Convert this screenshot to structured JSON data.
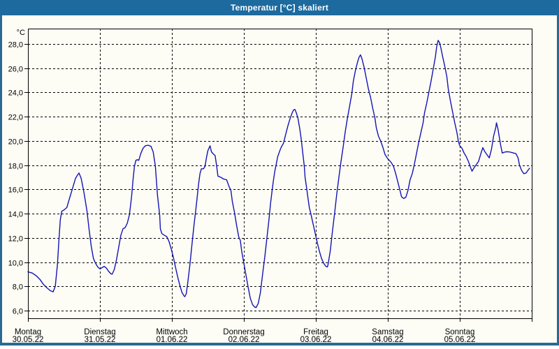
{
  "window": {
    "title": "Temperatur [°C] skaliert"
  },
  "colors": {
    "chrome_blue": "#1d6a9e",
    "border_blue": "#2a6a92",
    "content_bg": "#fdfdf6",
    "plot_border": "#000000",
    "gridline": "#000000",
    "label_color": "#000000",
    "line_color": "#1414b4"
  },
  "chart_data": {
    "type": "line",
    "title": "Temperatur [°C] skaliert",
    "legend": "none",
    "grid": "dashed",
    "y_axis": {
      "unit_label": "°C",
      "tick_values": [
        28,
        26,
        24,
        22,
        20,
        18,
        16,
        14,
        12,
        10,
        8,
        6
      ],
      "tick_labels": [
        "28,0",
        "26,0",
        "24,0",
        "22,0",
        "20,0",
        "18,0",
        "16,0",
        "14,0",
        "12,0",
        "10,0",
        "8,0",
        "6,0"
      ]
    },
    "x_axis": {
      "days": [
        {
          "name": "Montag",
          "date": "30.05.22"
        },
        {
          "name": "Dienstag",
          "date": "31.05.22"
        },
        {
          "name": "Mittwoch",
          "date": "01.06.22"
        },
        {
          "name": "Donnerstag",
          "date": "02.06.22"
        },
        {
          "name": "Freitag",
          "date": "03.06.22"
        },
        {
          "name": "Samstag",
          "date": "04.06.22"
        },
        {
          "name": "Sonntag",
          "date": "05.06.22"
        }
      ],
      "xlim_days": [
        0,
        7
      ]
    },
    "ylim": [
      5.4,
      29.3
    ],
    "series": [
      {
        "name": "Temperatur",
        "points": [
          [
            0.0,
            9.2
          ],
          [
            0.06,
            9.1
          ],
          [
            0.12,
            8.85
          ],
          [
            0.17,
            8.55
          ],
          [
            0.21,
            8.2
          ],
          [
            0.26,
            7.9
          ],
          [
            0.31,
            7.65
          ],
          [
            0.35,
            7.55
          ],
          [
            0.38,
            8.0
          ],
          [
            0.41,
            9.8
          ],
          [
            0.43,
            11.8
          ],
          [
            0.45,
            13.5
          ],
          [
            0.47,
            14.2
          ],
          [
            0.5,
            14.3
          ],
          [
            0.54,
            14.5
          ],
          [
            0.58,
            15.3
          ],
          [
            0.62,
            16.1
          ],
          [
            0.66,
            16.9
          ],
          [
            0.69,
            17.2
          ],
          [
            0.71,
            17.35
          ],
          [
            0.74,
            16.9
          ],
          [
            0.78,
            15.7
          ],
          [
            0.82,
            14.2
          ],
          [
            0.85,
            12.7
          ],
          [
            0.88,
            11.3
          ],
          [
            0.91,
            10.3
          ],
          [
            0.94,
            9.9
          ],
          [
            0.97,
            9.6
          ],
          [
            1.0,
            9.45
          ],
          [
            1.03,
            9.55
          ],
          [
            1.06,
            9.65
          ],
          [
            1.09,
            9.5
          ],
          [
            1.12,
            9.25
          ],
          [
            1.15,
            9.05
          ],
          [
            1.17,
            9.0
          ],
          [
            1.2,
            9.4
          ],
          [
            1.23,
            10.2
          ],
          [
            1.26,
            11.2
          ],
          [
            1.29,
            12.2
          ],
          [
            1.32,
            12.75
          ],
          [
            1.35,
            12.85
          ],
          [
            1.38,
            13.2
          ],
          [
            1.41,
            13.9
          ],
          [
            1.44,
            15.4
          ],
          [
            1.46,
            16.8
          ],
          [
            1.48,
            17.9
          ],
          [
            1.5,
            18.4
          ],
          [
            1.52,
            18.45
          ],
          [
            1.54,
            18.4
          ],
          [
            1.57,
            19.0
          ],
          [
            1.6,
            19.4
          ],
          [
            1.63,
            19.6
          ],
          [
            1.67,
            19.65
          ],
          [
            1.71,
            19.55
          ],
          [
            1.74,
            19.1
          ],
          [
            1.77,
            17.95
          ],
          [
            1.8,
            15.5
          ],
          [
            1.83,
            13.9
          ],
          [
            1.84,
            12.75
          ],
          [
            1.86,
            12.35
          ],
          [
            1.9,
            12.2
          ],
          [
            1.93,
            12.1
          ],
          [
            1.96,
            11.7
          ],
          [
            1.99,
            11.1
          ],
          [
            2.02,
            10.4
          ],
          [
            2.05,
            9.6
          ],
          [
            2.08,
            8.8
          ],
          [
            2.11,
            8.1
          ],
          [
            2.14,
            7.5
          ],
          [
            2.17,
            7.2
          ],
          [
            2.18,
            7.15
          ],
          [
            2.2,
            7.4
          ],
          [
            2.22,
            8.3
          ],
          [
            2.25,
            9.8
          ],
          [
            2.28,
            11.5
          ],
          [
            2.31,
            13.2
          ],
          [
            2.33,
            14.2
          ],
          [
            2.35,
            15.3
          ],
          [
            2.37,
            16.4
          ],
          [
            2.39,
            17.3
          ],
          [
            2.41,
            17.7
          ],
          [
            2.44,
            17.7
          ],
          [
            2.46,
            17.9
          ],
          [
            2.48,
            18.6
          ],
          [
            2.5,
            19.2
          ],
          [
            2.53,
            19.6
          ],
          [
            2.55,
            19.1
          ],
          [
            2.58,
            18.9
          ],
          [
            2.6,
            18.8
          ],
          [
            2.62,
            18.0
          ],
          [
            2.64,
            17.1
          ],
          [
            2.68,
            17.0
          ],
          [
            2.72,
            16.85
          ],
          [
            2.76,
            16.8
          ],
          [
            2.79,
            16.3
          ],
          [
            2.82,
            15.9
          ],
          [
            2.84,
            15.0
          ],
          [
            2.87,
            14.1
          ],
          [
            2.9,
            13.0
          ],
          [
            2.93,
            12.05
          ],
          [
            2.95,
            11.8
          ],
          [
            2.97,
            10.9
          ],
          [
            3.0,
            9.9
          ],
          [
            3.03,
            8.9
          ],
          [
            3.06,
            7.9
          ],
          [
            3.09,
            7.0
          ],
          [
            3.12,
            6.5
          ],
          [
            3.15,
            6.3
          ],
          [
            3.17,
            6.25
          ],
          [
            3.2,
            6.6
          ],
          [
            3.23,
            7.5
          ],
          [
            3.26,
            9.0
          ],
          [
            3.29,
            10.4
          ],
          [
            3.32,
            12.0
          ],
          [
            3.35,
            13.6
          ],
          [
            3.37,
            14.8
          ],
          [
            3.39,
            15.8
          ],
          [
            3.41,
            16.7
          ],
          [
            3.43,
            17.5
          ],
          [
            3.45,
            18.1
          ],
          [
            3.47,
            18.7
          ],
          [
            3.5,
            19.2
          ],
          [
            3.52,
            19.5
          ],
          [
            3.55,
            19.8
          ],
          [
            3.58,
            20.5
          ],
          [
            3.61,
            21.2
          ],
          [
            3.64,
            21.8
          ],
          [
            3.67,
            22.3
          ],
          [
            3.69,
            22.55
          ],
          [
            3.71,
            22.6
          ],
          [
            3.73,
            22.3
          ],
          [
            3.75,
            21.9
          ],
          [
            3.78,
            20.9
          ],
          [
            3.8,
            20.0
          ],
          [
            3.82,
            18.9
          ],
          [
            3.84,
            17.9
          ],
          [
            3.85,
            17.0
          ],
          [
            3.87,
            16.2
          ],
          [
            3.89,
            15.3
          ],
          [
            3.91,
            14.5
          ],
          [
            3.93,
            14.0
          ],
          [
            3.96,
            13.2
          ],
          [
            3.99,
            12.4
          ],
          [
            4.02,
            11.6
          ],
          [
            4.05,
            10.9
          ],
          [
            4.08,
            10.3
          ],
          [
            4.11,
            9.9
          ],
          [
            4.14,
            9.65
          ],
          [
            4.16,
            9.6
          ],
          [
            4.17,
            9.8
          ],
          [
            4.2,
            10.9
          ],
          [
            4.23,
            12.5
          ],
          [
            4.26,
            14.0
          ],
          [
            4.29,
            15.6
          ],
          [
            4.32,
            17.0
          ],
          [
            4.35,
            18.3
          ],
          [
            4.38,
            19.5
          ],
          [
            4.41,
            20.8
          ],
          [
            4.44,
            21.9
          ],
          [
            4.47,
            22.9
          ],
          [
            4.5,
            23.9
          ],
          [
            4.52,
            24.9
          ],
          [
            4.55,
            25.8
          ],
          [
            4.58,
            26.5
          ],
          [
            4.6,
            26.9
          ],
          [
            4.62,
            27.1
          ],
          [
            4.64,
            26.8
          ],
          [
            4.67,
            26.1
          ],
          [
            4.7,
            25.2
          ],
          [
            4.73,
            24.3
          ],
          [
            4.76,
            23.6
          ],
          [
            4.79,
            22.7
          ],
          [
            4.82,
            21.9
          ],
          [
            4.84,
            21.1
          ],
          [
            4.87,
            20.4
          ],
          [
            4.9,
            20.0
          ],
          [
            4.93,
            19.5
          ],
          [
            4.96,
            18.9
          ],
          [
            4.99,
            18.6
          ],
          [
            5.02,
            18.4
          ],
          [
            5.05,
            18.2
          ],
          [
            5.08,
            17.9
          ],
          [
            5.11,
            17.3
          ],
          [
            5.14,
            16.6
          ],
          [
            5.17,
            15.9
          ],
          [
            5.19,
            15.4
          ],
          [
            5.22,
            15.25
          ],
          [
            5.25,
            15.35
          ],
          [
            5.28,
            15.9
          ],
          [
            5.31,
            16.8
          ],
          [
            5.34,
            17.3
          ],
          [
            5.37,
            18.1
          ],
          [
            5.4,
            19.0
          ],
          [
            5.43,
            19.9
          ],
          [
            5.46,
            20.7
          ],
          [
            5.49,
            21.5
          ],
          [
            5.51,
            22.3
          ],
          [
            5.54,
            23.1
          ],
          [
            5.57,
            24.0
          ],
          [
            5.6,
            24.9
          ],
          [
            5.63,
            25.9
          ],
          [
            5.66,
            26.9
          ],
          [
            5.68,
            27.8
          ],
          [
            5.7,
            28.3
          ],
          [
            5.72,
            28.1
          ],
          [
            5.74,
            27.6
          ],
          [
            5.76,
            27.0
          ],
          [
            5.79,
            26.2
          ],
          [
            5.82,
            25.3
          ],
          [
            5.84,
            24.3
          ],
          [
            5.87,
            23.3
          ],
          [
            5.9,
            22.4
          ],
          [
            5.93,
            21.5
          ],
          [
            5.96,
            20.7
          ],
          [
            5.98,
            20.0
          ],
          [
            6.0,
            19.6
          ],
          [
            6.03,
            19.4
          ],
          [
            6.06,
            19.0
          ],
          [
            6.09,
            18.7
          ],
          [
            6.12,
            18.3
          ],
          [
            6.15,
            17.8
          ],
          [
            6.17,
            17.5
          ],
          [
            6.2,
            17.8
          ],
          [
            6.23,
            18.05
          ],
          [
            6.26,
            18.3
          ],
          [
            6.29,
            18.9
          ],
          [
            6.32,
            19.45
          ],
          [
            6.35,
            19.1
          ],
          [
            6.38,
            18.85
          ],
          [
            6.41,
            18.6
          ],
          [
            6.44,
            19.3
          ],
          [
            6.47,
            20.4
          ],
          [
            6.5,
            21.1
          ],
          [
            6.51,
            21.5
          ],
          [
            6.53,
            21.0
          ],
          [
            6.55,
            20.3
          ],
          [
            6.57,
            19.6
          ],
          [
            6.59,
            19.0
          ],
          [
            6.61,
            19.05
          ],
          [
            6.64,
            19.1
          ],
          [
            6.68,
            19.1
          ],
          [
            6.72,
            19.05
          ],
          [
            6.75,
            19.0
          ],
          [
            6.78,
            18.95
          ],
          [
            6.81,
            18.6
          ],
          [
            6.83,
            18.0
          ],
          [
            6.86,
            17.55
          ],
          [
            6.89,
            17.3
          ],
          [
            6.92,
            17.35
          ],
          [
            6.95,
            17.6
          ],
          [
            6.97,
            17.75
          ]
        ]
      }
    ]
  }
}
